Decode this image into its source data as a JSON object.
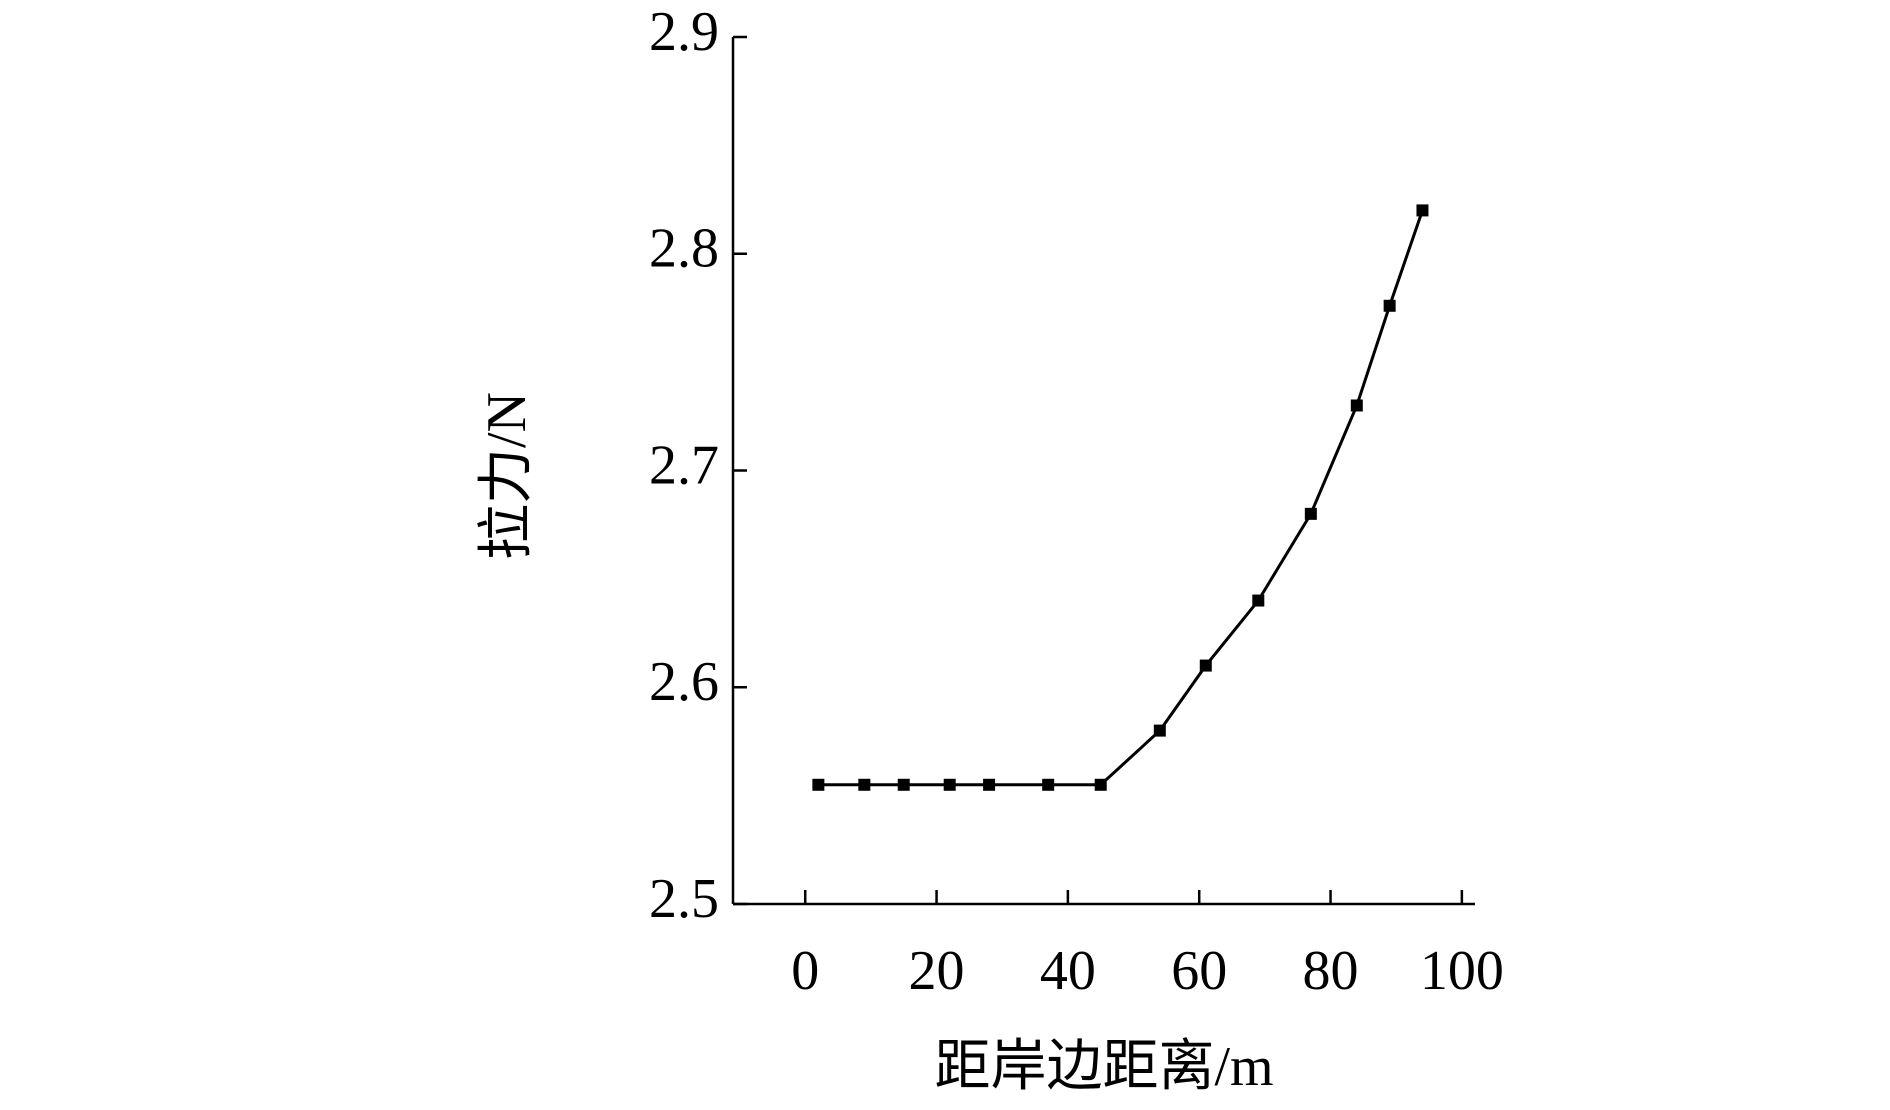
{
  "chart_data": {
    "type": "line",
    "x_label": "距岸边距离/m",
    "y_label": "拉力/N",
    "x": [
      2,
      9,
      15,
      22,
      28,
      37,
      45,
      54,
      61,
      69,
      77,
      84,
      89,
      94
    ],
    "series": [
      {
        "color": "#000000",
        "values": [
          2.555,
          2.555,
          2.555,
          2.555,
          2.555,
          2.555,
          2.555,
          2.58,
          2.61,
          2.64,
          2.68,
          2.73,
          2.776,
          2.82
        ]
      }
    ],
    "xlim": [
      -11,
      102
    ],
    "xticks": [
      0,
      20,
      40,
      60,
      80,
      100
    ],
    "ylim": [
      2.5,
      2.9
    ],
    "yticks": [
      2.5,
      2.6,
      2.7,
      2.8,
      2.9
    ],
    "grid": false
  }
}
